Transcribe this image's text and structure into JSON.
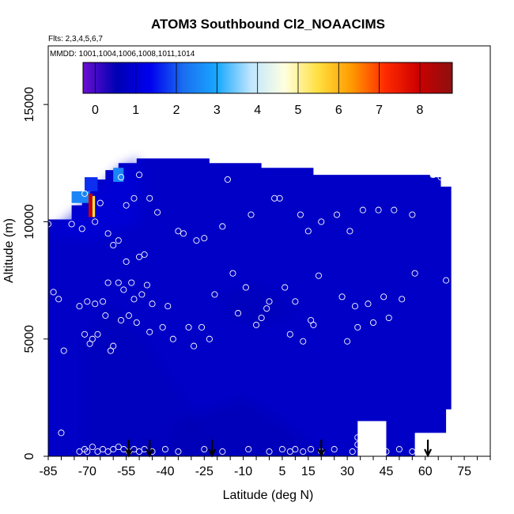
{
  "chart_data": {
    "type": "heatmap",
    "title": "ATOM3 Southbound Cl2_NOAACIMS",
    "subtitle_flights": "Flts: 2,3,4,5,6,7",
    "subtitle_dates": "MMDD: 1001,1004,1006,1008,1011,1014",
    "xlabel": "Latitude (deg N)",
    "ylabel": "Altitude (m)",
    "xlim": [
      -85,
      85
    ],
    "ylim": [
      0,
      17500
    ],
    "x_ticks": [
      -85,
      -70,
      -55,
      -40,
      -25,
      -10,
      5,
      15,
      30,
      45,
      60,
      75
    ],
    "y_ticks": [
      0,
      5000,
      10000,
      15000
    ],
    "colorbar": {
      "range": [
        -0.3,
        8.8
      ],
      "ticks": [
        0,
        1,
        2,
        3,
        4,
        5,
        6,
        7,
        8
      ],
      "colors": [
        "#6a0fd0",
        "#0000b4",
        "#0000ee",
        "#1a6ff0",
        "#19a8ff",
        "#bfe6ff",
        "#ffffe0",
        "#ffe040",
        "#ff9a00",
        "#ff2a00",
        "#cc0000",
        "#8c1010"
      ]
    },
    "field_description_levels": {
      "background": 0.8,
      "lower_southern": 0.6,
      "tropical_low": 0.5,
      "upper_south_edge": 2.5,
      "hotspot": 8.0
    },
    "profile_arrows_lat": [
      -54,
      -46,
      -22,
      20,
      61
    ],
    "sample_points": [
      [
        -85,
        9900
      ],
      [
        -83,
        7000
      ],
      [
        -81,
        6700
      ],
      [
        -79,
        4500
      ],
      [
        -80,
        1000
      ],
      [
        -76,
        9900
      ],
      [
        -73,
        6400
      ],
      [
        -72,
        9700
      ],
      [
        -71,
        5200
      ],
      [
        -70,
        6600
      ],
      [
        -69,
        4800
      ],
      [
        -68,
        5000
      ],
      [
        -67,
        6500
      ],
      [
        -66,
        5200
      ],
      [
        -64,
        6600
      ],
      [
        -63,
        6000
      ],
      [
        -62,
        7400
      ],
      [
        -61,
        4500
      ],
      [
        -60,
        4700
      ],
      [
        -58,
        7400
      ],
      [
        -57,
        5800
      ],
      [
        -56,
        7100
      ],
      [
        -55,
        8300
      ],
      [
        -54,
        6000
      ],
      [
        -53,
        7400
      ],
      [
        -52,
        6700
      ],
      [
        -51,
        5700
      ],
      [
        -50,
        8500
      ],
      [
        -49,
        6900
      ],
      [
        -48,
        8600
      ],
      [
        -47,
        7300
      ],
      [
        -46,
        5300
      ],
      [
        -45,
        6500
      ],
      [
        -43,
        10400
      ],
      [
        -41,
        5500
      ],
      [
        -39,
        6400
      ],
      [
        -37,
        5000
      ],
      [
        -35,
        9600
      ],
      [
        -33,
        9500
      ],
      [
        -31,
        5500
      ],
      [
        -29,
        4700
      ],
      [
        -28,
        9200
      ],
      [
        -26,
        5500
      ],
      [
        -25,
        9300
      ],
      [
        -23,
        5000
      ],
      [
        -21,
        6900
      ],
      [
        -18,
        9800
      ],
      [
        -16,
        11800
      ],
      [
        -14,
        7800
      ],
      [
        -12,
        6100
      ],
      [
        -9,
        7200
      ],
      [
        -7,
        10300
      ],
      [
        -5,
        5600
      ],
      [
        -3,
        5900
      ],
      [
        -1,
        6300
      ],
      [
        0,
        6600
      ],
      [
        2,
        11000
      ],
      [
        4,
        11000
      ],
      [
        6,
        7200
      ],
      [
        8,
        5200
      ],
      [
        10,
        6600
      ],
      [
        12,
        10300
      ],
      [
        13,
        4900
      ],
      [
        15,
        9600
      ],
      [
        16,
        5800
      ],
      [
        17,
        5600
      ],
      [
        19,
        7700
      ],
      [
        20,
        10000
      ],
      [
        23,
        12500
      ],
      [
        26,
        10300
      ],
      [
        28,
        6800
      ],
      [
        30,
        4900
      ],
      [
        31,
        9600
      ],
      [
        33,
        6400
      ],
      [
        34,
        5500
      ],
      [
        36,
        10500
      ],
      [
        38,
        6500
      ],
      [
        40,
        5700
      ],
      [
        42,
        10500
      ],
      [
        44,
        6800
      ],
      [
        46,
        5900
      ],
      [
        48,
        10500
      ],
      [
        51,
        6700
      ],
      [
        55,
        10300
      ],
      [
        56,
        7800
      ],
      [
        63,
        12000
      ],
      [
        66,
        11900
      ],
      [
        68,
        7500
      ],
      [
        70,
        1400
      ],
      [
        -71,
        11200
      ],
      [
        -67,
        10000
      ],
      [
        -65,
        10800
      ],
      [
        -62,
        9500
      ],
      [
        -60,
        9000
      ],
      [
        -58,
        9200
      ],
      [
        -57,
        11900
      ],
      [
        -55,
        10700
      ],
      [
        -52,
        11000
      ],
      [
        -50,
        12000
      ],
      [
        -46,
        11000
      ],
      [
        -73,
        200
      ],
      [
        -71,
        300
      ],
      [
        -70,
        200
      ],
      [
        -68,
        400
      ],
      [
        -66,
        200
      ],
      [
        -64,
        300
      ],
      [
        -62,
        200
      ],
      [
        -60,
        300
      ],
      [
        -58,
        400
      ],
      [
        -56,
        300
      ],
      [
        -54,
        200
      ],
      [
        -52,
        300
      ],
      [
        -50,
        200
      ],
      [
        -48,
        300
      ],
      [
        -45,
        200
      ],
      [
        -40,
        300
      ],
      [
        -35,
        200
      ],
      [
        -25,
        300
      ],
      [
        -18,
        200
      ],
      [
        -8,
        300
      ],
      [
        0,
        200
      ],
      [
        5,
        300
      ],
      [
        8,
        200
      ],
      [
        10,
        300
      ],
      [
        13,
        200
      ],
      [
        16,
        300
      ],
      [
        20,
        200
      ],
      [
        25,
        300
      ],
      [
        32,
        200
      ],
      [
        34,
        500
      ],
      [
        34,
        800
      ],
      [
        36,
        200
      ],
      [
        40,
        300
      ],
      [
        45,
        200
      ],
      [
        50,
        300
      ],
      [
        55,
        200
      ]
    ]
  }
}
